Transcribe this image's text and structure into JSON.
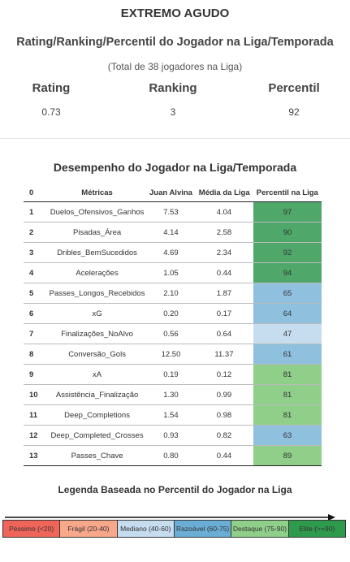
{
  "header": {
    "title": "EXTREMO AGUDO",
    "subtitle": "Rating/Ranking/Percentil do Jogador na Liga/Temporada",
    "note": "(Total de 38 jogadores na Liga)"
  },
  "stats": [
    {
      "label": "Rating",
      "value": "0.73"
    },
    {
      "label": "Ranking",
      "value": "3"
    },
    {
      "label": "Percentil",
      "value": "92"
    }
  ],
  "table": {
    "title": "Desempenho do Jogador na Liga/Temporada",
    "columns": [
      "0",
      "Métricas",
      "Juan Alvina",
      "Média da Liga",
      "Percentil na Liga"
    ],
    "rows": [
      {
        "idx": "1",
        "metric": "Duelos_Ofensivos_Ganhos",
        "player": "7.53",
        "league": "4.04",
        "pct": "97",
        "color": "#4fa86a"
      },
      {
        "idx": "2",
        "metric": "Pisadas_Área",
        "player": "4.14",
        "league": "2.58",
        "pct": "90",
        "color": "#4fa86a"
      },
      {
        "idx": "3",
        "metric": "Dribles_BemSucedidos",
        "player": "4.69",
        "league": "2.34",
        "pct": "92",
        "color": "#4fa86a"
      },
      {
        "idx": "4",
        "metric": "Acelerações",
        "player": "1.05",
        "league": "0.44",
        "pct": "94",
        "color": "#4fa86a"
      },
      {
        "idx": "5",
        "metric": "Passes_Longos_Recebidos",
        "player": "2.10",
        "league": "1.87",
        "pct": "65",
        "color": "#8fc1df"
      },
      {
        "idx": "6",
        "metric": "xG",
        "player": "0.20",
        "league": "0.17",
        "pct": "64",
        "color": "#8fc1df"
      },
      {
        "idx": "7",
        "metric": "Finalizações_NoAlvo",
        "player": "0.56",
        "league": "0.64",
        "pct": "47",
        "color": "#c6dcef"
      },
      {
        "idx": "8",
        "metric": "Conversão_Gols",
        "player": "12.50",
        "league": "11.37",
        "pct": "61",
        "color": "#8fc1df"
      },
      {
        "idx": "9",
        "metric": "xA",
        "player": "0.19",
        "league": "0.12",
        "pct": "81",
        "color": "#8fcf8a"
      },
      {
        "idx": "10",
        "metric": "Assistência_Finalização",
        "player": "1.30",
        "league": "0.99",
        "pct": "81",
        "color": "#8fcf8a"
      },
      {
        "idx": "11",
        "metric": "Deep_Completions",
        "player": "1.54",
        "league": "0.98",
        "pct": "81",
        "color": "#8fcf8a"
      },
      {
        "idx": "12",
        "metric": "Deep_Completed_Crosses",
        "player": "0.93",
        "league": "0.82",
        "pct": "63",
        "color": "#8fc1df"
      },
      {
        "idx": "13",
        "metric": "Passes_Chave",
        "player": "0.80",
        "league": "0.44",
        "pct": "89",
        "color": "#8fcf8a"
      }
    ]
  },
  "legend": {
    "title": "Legenda Baseada no Percentil do Jogador na Liga",
    "items": [
      {
        "label": "Péssimo (<20)",
        "color": "#f0655a"
      },
      {
        "label": "Frágil (20-40)",
        "color": "#f7a78a"
      },
      {
        "label": "Mediano (40-60)",
        "color": "#c6dcef"
      },
      {
        "label": "Razoável (60-75)",
        "color": "#6aaed6"
      },
      {
        "label": "Destaque (75-90)",
        "color": "#8fcf8a"
      },
      {
        "label": "Elite (>=90)",
        "color": "#2e9a4c"
      }
    ]
  }
}
